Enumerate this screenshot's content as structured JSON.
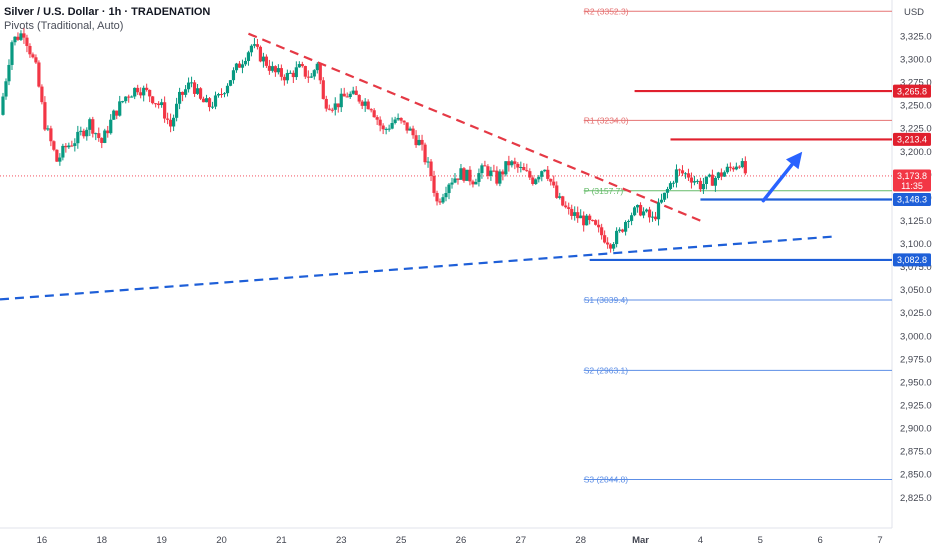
{
  "header": {
    "title": "Silver / U.S. Dollar · 1h · TRADENATION",
    "subtitle": "Pivots (Traditional, Auto)"
  },
  "chart_data": {
    "type": "candlestick",
    "currency": "USD",
    "y_range": [
      2815,
      3358
    ],
    "y_ticks": [
      3325,
      3300,
      3275,
      3250,
      3225,
      3200,
      3175,
      3150,
      3125,
      3100,
      3075,
      3050,
      3025,
      3000,
      2975,
      2950,
      2925,
      2900,
      2875,
      2850,
      2825
    ],
    "x_ticks": [
      {
        "label": "16",
        "t": 0.5
      },
      {
        "label": "18",
        "t": 1.5
      },
      {
        "label": "19",
        "t": 2.5
      },
      {
        "label": "20",
        "t": 3.5
      },
      {
        "label": "21",
        "t": 4.5
      },
      {
        "label": "23",
        "t": 5.5
      },
      {
        "label": "25",
        "t": 6.5
      },
      {
        "label": "26",
        "t": 7.5
      },
      {
        "label": "27",
        "t": 8.5
      },
      {
        "label": "28",
        "t": 9.5
      },
      {
        "label": "Mar",
        "t": 10.5
      },
      {
        "label": "4",
        "t": 11.5
      },
      {
        "label": "5",
        "t": 12.5
      },
      {
        "label": "6",
        "t": 13.5
      },
      {
        "label": "7",
        "t": 14.5
      }
    ],
    "x_range": [
      -0.2,
      14.7
    ],
    "price_path": [
      [
        -0.2,
        3240
      ],
      [
        0.0,
        3320
      ],
      [
        0.2,
        3330
      ],
      [
        0.4,
        3290
      ],
      [
        0.55,
        3230
      ],
      [
        0.75,
        3190
      ],
      [
        0.9,
        3205
      ],
      [
        1.1,
        3215
      ],
      [
        1.3,
        3232
      ],
      [
        1.5,
        3210
      ],
      [
        1.7,
        3240
      ],
      [
        1.9,
        3260
      ],
      [
        2.1,
        3270
      ],
      [
        2.3,
        3262
      ],
      [
        2.5,
        3248
      ],
      [
        2.65,
        3228
      ],
      [
        2.8,
        3258
      ],
      [
        3.0,
        3276
      ],
      [
        3.15,
        3255
      ],
      [
        3.3,
        3250
      ],
      [
        3.45,
        3258
      ],
      [
        3.6,
        3275
      ],
      [
        3.75,
        3290
      ],
      [
        4.0,
        3315
      ],
      [
        4.2,
        3300
      ],
      [
        4.4,
        3285
      ],
      [
        4.6,
        3282
      ],
      [
        4.8,
        3290
      ],
      [
        5.0,
        3280
      ],
      [
        5.1,
        3298
      ],
      [
        5.2,
        3255
      ],
      [
        5.4,
        3250
      ],
      [
        5.6,
        3262
      ],
      [
        5.8,
        3258
      ],
      [
        6.0,
        3250
      ],
      [
        6.2,
        3222
      ],
      [
        6.4,
        3235
      ],
      [
        6.6,
        3226
      ],
      [
        6.8,
        3210
      ],
      [
        7.0,
        3175
      ],
      [
        7.1,
        3145
      ],
      [
        7.3,
        3168
      ],
      [
        7.5,
        3177
      ],
      [
        7.7,
        3170
      ],
      [
        7.9,
        3182
      ],
      [
        8.1,
        3170
      ],
      [
        8.3,
        3188
      ],
      [
        8.5,
        3180
      ],
      [
        8.7,
        3170
      ],
      [
        8.9,
        3185
      ],
      [
        9.1,
        3150
      ],
      [
        9.3,
        3134
      ],
      [
        9.5,
        3128
      ],
      [
        9.7,
        3120
      ],
      [
        9.85,
        3110
      ],
      [
        10.0,
        3102
      ],
      [
        10.15,
        3112
      ],
      [
        10.3,
        3132
      ],
      [
        10.5,
        3137
      ],
      [
        10.7,
        3126
      ],
      [
        10.9,
        3152
      ],
      [
        11.1,
        3178
      ],
      [
        11.3,
        3175
      ],
      [
        11.5,
        3164
      ],
      [
        11.7,
        3170
      ],
      [
        11.85,
        3176
      ],
      [
        12.0,
        3182
      ],
      [
        12.15,
        3190
      ],
      [
        12.25,
        3177
      ]
    ],
    "pivots": [
      {
        "name": "R2",
        "value": 3352.3,
        "label": "R2 (3352.3)",
        "color": "#e57373"
      },
      {
        "name": "R1",
        "value": 3234.0,
        "label": "R1 (3234.0)",
        "color": "#e57373"
      },
      {
        "name": "P",
        "value": 3157.7,
        "label": "P (3157.7)",
        "color": "#66bb6a"
      },
      {
        "name": "S1",
        "value": 3039.4,
        "label": "S1 (3039.4)",
        "color": "#5c8ee6"
      },
      {
        "name": "S2",
        "value": 2963.1,
        "label": "S2 (2963.1)",
        "color": "#5c8ee6"
      },
      {
        "name": "S3",
        "value": 2844.8,
        "label": "S3 (2844.8)",
        "color": "#5c8ee6"
      }
    ],
    "levels": [
      {
        "value": 3265.8,
        "label": "3,265.8",
        "color": "#e0202e",
        "from_t": 10.4
      },
      {
        "value": 3213.4,
        "label": "3,213.4",
        "color": "#e0202e",
        "from_t": 11.0
      },
      {
        "value": 3148.3,
        "label": "3,148.3",
        "color": "#1e5fd8",
        "from_t": 11.5
      },
      {
        "value": 3082.8,
        "label": "3,082.8",
        "color": "#1e5fd8",
        "from_t": 9.65
      }
    ],
    "current_price": {
      "value": 3173.8,
      "label": "3,173.8",
      "countdown": "11:35",
      "color": "#f23645"
    },
    "trendlines": [
      {
        "kind": "resistance",
        "color": "#e53945",
        "style": "dashed",
        "points": [
          [
            3.95,
            3328
          ],
          [
            11.55,
            3124
          ]
        ]
      },
      {
        "kind": "support",
        "color": "#1e5fd8",
        "style": "dashed",
        "points": [
          [
            -0.2,
            3040
          ],
          [
            13.7,
            3108
          ]
        ]
      }
    ],
    "arrow": {
      "color": "#2962ff",
      "from": [
        12.55,
        3147
      ],
      "to": [
        13.2,
        3200
      ]
    }
  }
}
